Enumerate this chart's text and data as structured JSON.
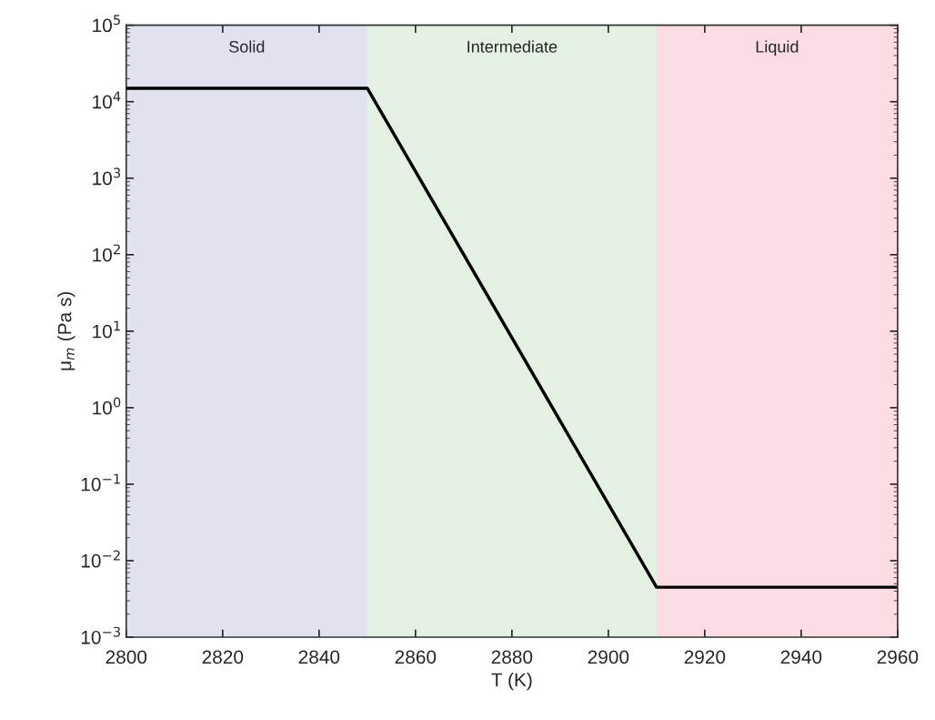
{
  "chart_data": {
    "type": "line",
    "xlabel": "T (K)",
    "ylabel": "μ$_{m}$ (Pa s)",
    "x": [
      2800,
      2850,
      2910,
      2960
    ],
    "series": [
      {
        "color": "#000000",
        "values": [
          15000,
          15000,
          0.0045,
          0.0045
        ]
      }
    ],
    "log": "y",
    "xlim": [
      2800,
      2960
    ],
    "ylim": [
      0.001,
      100000
    ],
    "xticks": [
      2800,
      2820,
      2840,
      2860,
      2880,
      2900,
      2920,
      2940,
      2960
    ],
    "yticks": [
      {
        "value": 0.001,
        "label": "10$^{−3}$"
      },
      {
        "value": 0.01,
        "label": "10$^{−2}$"
      },
      {
        "value": 0.1,
        "label": "10$^{−1}$"
      },
      {
        "value": 1,
        "label": "10$^{0}$"
      },
      {
        "value": 10,
        "label": "10$^{1}$"
      },
      {
        "value": 100,
        "label": "10$^{2}$"
      },
      {
        "value": 1000,
        "label": "10$^{3}$"
      },
      {
        "value": 10000,
        "label": "10$^{4}$"
      },
      {
        "value": 100000,
        "label": "10$^{5}$"
      }
    ],
    "bands": [
      {
        "axis": "x",
        "from": 2800,
        "to": 2850,
        "label": "Solid",
        "color": "#e0e2f0"
      },
      {
        "axis": "x",
        "from": 2850,
        "to": 2910,
        "label": "Intermediate",
        "color": "#e2f1e2"
      },
      {
        "axis": "x",
        "from": 2910,
        "to": 2960,
        "label": "Liquid",
        "color": "#fadce2"
      }
    ],
    "grid": false,
    "legend": false,
    "line_style": "solid",
    "marker": "none"
  }
}
